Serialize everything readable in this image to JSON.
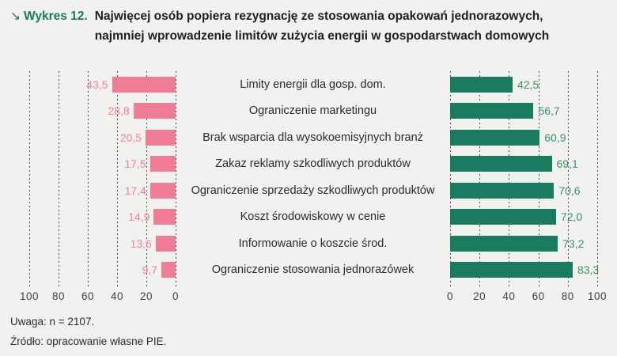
{
  "header": {
    "figure_arrow": "↘",
    "figure_label": "Wykres 12.",
    "title": "Najwięcej osób popiera rezygnację ze stosowania opakowań jednorazowych, najmniej wprowadzenie limitów zużycia energii w gospodarstwach domowych"
  },
  "chart_data": {
    "type": "bar",
    "orientation": "horizontal, two mirrored panels (left bars grow right-to-left, right bars left-to-right)",
    "categories": [
      "Limity energii dla gosp. dom.",
      "Ograniczenie marketingu",
      "Brak wsparcia dla wysokoemisyjnych branż",
      "Zakaz reklamy szkodliwych produktów",
      "Ograniczenie sprzedaży szkodliwych produktów",
      "Koszt środowiskowy w cenie",
      "Informowanie o koszcie środ.",
      "Ograniczenie stosowania jednorazówek"
    ],
    "series": [
      {
        "name": "left",
        "color": "#ef7d96",
        "values": [
          43.5,
          28.8,
          20.5,
          17.5,
          17.4,
          14.9,
          13.6,
          9.7
        ],
        "labels": [
          "43,5",
          "28,8",
          "20,5",
          "17,5",
          "17,4",
          "14,9",
          "13,6",
          "9,7"
        ]
      },
      {
        "name": "right",
        "color": "#1b7b60",
        "values": [
          42.5,
          56.7,
          60.9,
          69.1,
          70.6,
          72.0,
          73.2,
          83.3
        ],
        "labels": [
          "42,5",
          "56,7",
          "60,9",
          "69,1",
          "70,6",
          "72,0",
          "73,2",
          "83,3"
        ]
      }
    ],
    "left_axis_ticks": [
      "100",
      "80",
      "60",
      "40",
      "20",
      "0"
    ],
    "right_axis_ticks": [
      "0",
      "20",
      "40",
      "60",
      "80",
      "100"
    ],
    "xlim": [
      0,
      100
    ],
    "grid": "dashed-vertical",
    "legend": "none"
  },
  "footer": {
    "note": "Uwaga: n = 2107.",
    "source": "Źródło: opracowanie własne PIE."
  },
  "colors": {
    "background": "#f1f1ef",
    "accent_green": "#1a7a5e",
    "bar_pink": "#ef7d96",
    "bar_green": "#1b7b60",
    "value_pink": "#ef8099",
    "value_green": "#3a916f",
    "grid": "#4d4d4b",
    "text": "#1f1f1d"
  }
}
